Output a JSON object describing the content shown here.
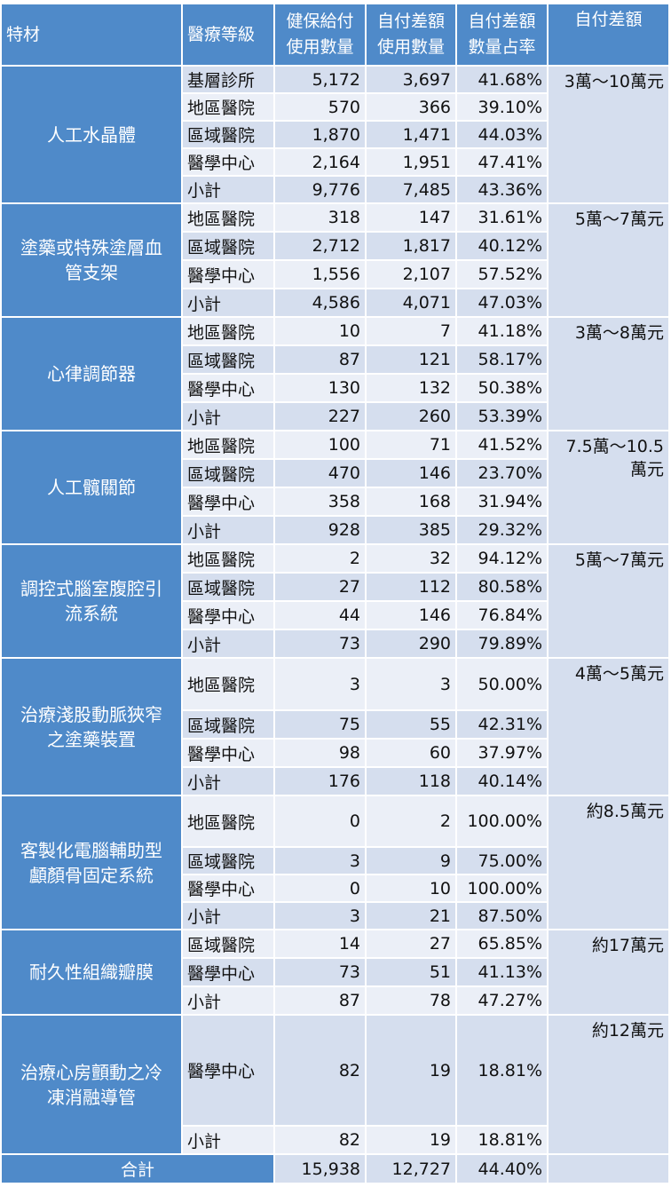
{
  "header": {
    "material": "特材",
    "level": "醫療等級",
    "nhi_qty": [
      "健保給付",
      "使用數量"
    ],
    "self_qty": [
      "自付差額",
      "使用數量"
    ],
    "ratio": [
      "自付差額",
      "數量占率"
    ],
    "range": "自付差額"
  },
  "groups": [
    {
      "name": [
        "人工水晶體"
      ],
      "range": [
        "3萬～10萬元"
      ],
      "rows": [
        {
          "level": "基層診所",
          "nhi": "5,172",
          "self": "3,697",
          "ratio": "41.68%",
          "h": 31
        },
        {
          "level": "地區醫院",
          "nhi": "570",
          "self": "366",
          "ratio": "39.10%",
          "h": 31
        },
        {
          "level": "區域醫院",
          "nhi": "1,870",
          "self": "1,471",
          "ratio": "44.03%",
          "h": 31
        },
        {
          "level": "醫學中心",
          "nhi": "2,164",
          "self": "1,951",
          "ratio": "47.41%",
          "h": 31
        },
        {
          "level": "小計",
          "nhi": "9,776",
          "self": "7,485",
          "ratio": "43.36%",
          "h": 31
        }
      ]
    },
    {
      "name": [
        "塗藥或特殊塗層血",
        "管支架"
      ],
      "range": [
        "5萬～7萬元"
      ],
      "rows": [
        {
          "level": "地區醫院",
          "nhi": "318",
          "self": "147",
          "ratio": "31.61%",
          "h": 32
        },
        {
          "level": "區域醫院",
          "nhi": "2,712",
          "self": "1,817",
          "ratio": "40.12%",
          "h": 32
        },
        {
          "level": "醫學中心",
          "nhi": "1,556",
          "self": "2,107",
          "ratio": "57.52%",
          "h": 32
        },
        {
          "level": "小計",
          "nhi": "4,586",
          "self": "4,071",
          "ratio": "47.03%",
          "h": 32
        }
      ]
    },
    {
      "name": [
        "心律調節器"
      ],
      "range": [
        "3萬～8萬元"
      ],
      "rows": [
        {
          "level": "地區醫院",
          "nhi": "10",
          "self": "7",
          "ratio": "41.18%",
          "h": 32
        },
        {
          "level": "區域醫院",
          "nhi": "87",
          "self": "121",
          "ratio": "58.17%",
          "h": 32
        },
        {
          "level": "醫學中心",
          "nhi": "130",
          "self": "132",
          "ratio": "50.38%",
          "h": 32
        },
        {
          "level": "小計",
          "nhi": "227",
          "self": "260",
          "ratio": "53.39%",
          "h": 32
        }
      ]
    },
    {
      "name": [
        "人工髖關節"
      ],
      "range": [
        "7.5萬～10.5",
        "萬元"
      ],
      "rows": [
        {
          "level": "地區醫院",
          "nhi": "100",
          "self": "71",
          "ratio": "41.52%",
          "h": 32
        },
        {
          "level": "區域醫院",
          "nhi": "470",
          "self": "146",
          "ratio": "23.70%",
          "h": 32
        },
        {
          "level": "醫學中心",
          "nhi": "358",
          "self": "168",
          "ratio": "31.94%",
          "h": 32
        },
        {
          "level": "小計",
          "nhi": "928",
          "self": "385",
          "ratio": "29.32%",
          "h": 32
        }
      ]
    },
    {
      "name": [
        "調控式腦室腹腔引",
        "流系統"
      ],
      "range": [
        "5萬～7萬元"
      ],
      "rows": [
        {
          "level": "地區醫院",
          "nhi": "2",
          "self": "32",
          "ratio": "94.12%",
          "h": 32
        },
        {
          "level": "區域醫院",
          "nhi": "27",
          "self": "112",
          "ratio": "80.58%",
          "h": 32
        },
        {
          "level": "醫學中心",
          "nhi": "44",
          "self": "146",
          "ratio": "76.84%",
          "h": 32
        },
        {
          "level": "小計",
          "nhi": "73",
          "self": "290",
          "ratio": "79.89%",
          "h": 32
        }
      ]
    },
    {
      "name": [
        "治療淺股動脈狹窄",
        "之塗藥裝置"
      ],
      "range": [
        "4萬～5萬元"
      ],
      "rows": [
        {
          "level": "地區醫院",
          "nhi": "3",
          "self": "3",
          "ratio": "50.00%",
          "h": 59
        },
        {
          "level": "區域醫院",
          "nhi": "75",
          "self": "55",
          "ratio": "42.31%",
          "h": 32
        },
        {
          "level": "醫學中心",
          "nhi": "98",
          "self": "60",
          "ratio": "37.97%",
          "h": 32
        },
        {
          "level": "小計",
          "nhi": "176",
          "self": "118",
          "ratio": "40.14%",
          "h": 32
        }
      ]
    },
    {
      "name": [
        "客製化電腦輔助型",
        "顱顏骨固定系統"
      ],
      "range": [
        "約8.5萬元"
      ],
      "rows": [
        {
          "level": "地區醫院",
          "nhi": "0",
          "self": "2",
          "ratio": "100.00%",
          "h": 58
        },
        {
          "level": "區域醫院",
          "nhi": "3",
          "self": "9",
          "ratio": "75.00%",
          "h": 31
        },
        {
          "level": "醫學中心",
          "nhi": "0",
          "self": "10",
          "ratio": "100.00%",
          "h": 31
        },
        {
          "level": "小計",
          "nhi": "3",
          "self": "21",
          "ratio": "87.50%",
          "h": 31
        }
      ]
    },
    {
      "name": [
        "耐久性組織瓣膜"
      ],
      "range": [
        "約17萬元"
      ],
      "rows": [
        {
          "level": "區域醫院",
          "nhi": "14",
          "self": "27",
          "ratio": "65.85%",
          "h": 32
        },
        {
          "level": "醫學中心",
          "nhi": "73",
          "self": "51",
          "ratio": "41.13%",
          "h": 32
        },
        {
          "level": "小計",
          "nhi": "87",
          "self": "78",
          "ratio": "47.27%",
          "h": 32
        }
      ]
    },
    {
      "name": [
        "治療心房顫動之冷",
        "凍消融導管"
      ],
      "range": [
        "約12萬元"
      ],
      "rows": [
        {
          "level": "醫學中心",
          "nhi": "82",
          "self": "19",
          "ratio": "18.81%",
          "h": 125
        },
        {
          "level": "小計",
          "nhi": "82",
          "self": "19",
          "ratio": "18.81%",
          "h": 32
        }
      ]
    }
  ],
  "total": {
    "label": "合計",
    "nhi": "15,938",
    "self": "12,727",
    "ratio": "44.40%"
  }
}
